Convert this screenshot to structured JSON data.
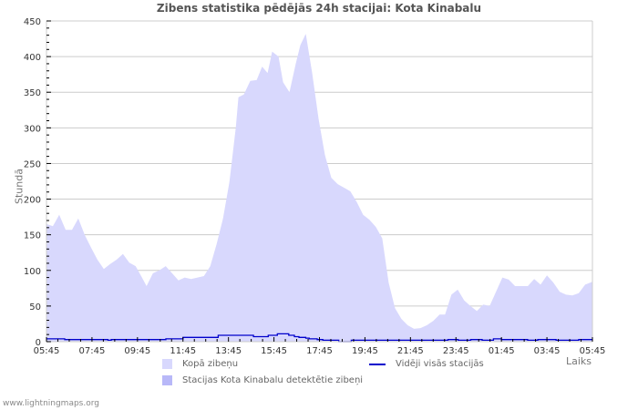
{
  "title": "Zibens statistika pēdējās 24h stacijai: Kota Kinabalu",
  "axes": {
    "ylabel": "Stundā",
    "xlabel": "Laiks"
  },
  "legend": {
    "total": "Kopā zibeņu",
    "station": "Stacijas Kota Kinabalu detektētie zibeņi",
    "average": "Vidēji visās stacijās"
  },
  "footer": "www.lightningmaps.org",
  "colors": {
    "total_fill": "#d8d8fd",
    "station_fill": "#b8b8f8",
    "average_line": "#0000cc",
    "grid": "#cccccc"
  },
  "chart_data": {
    "type": "area",
    "title": "Zibens statistika pēdējās 24h stacijai: Kota Kinabalu",
    "xlabel": "Laiks",
    "ylabel": "Stundā",
    "ylim": [
      0,
      450
    ],
    "yticks": [
      0,
      50,
      100,
      150,
      200,
      250,
      300,
      350,
      400,
      450
    ],
    "xticks": [
      "05:45",
      "07:45",
      "09:45",
      "11:45",
      "13:45",
      "15:45",
      "17:45",
      "19:45",
      "21:45",
      "23:45",
      "01:45",
      "03:45",
      "05:45"
    ],
    "grid": true,
    "legend_position": "bottom",
    "x_hours": [
      0,
      0.28,
      0.56,
      0.84,
      1.12,
      1.4,
      1.68,
      1.96,
      2.24,
      2.52,
      2.8,
      3.08,
      3.36,
      3.64,
      3.92,
      4.2,
      4.4,
      4.68,
      4.96,
      5.24,
      5.52,
      5.8,
      6.08,
      6.36,
      6.64,
      6.92,
      7.2,
      7.48,
      7.76,
      8.04,
      8.32,
      8.44,
      8.68,
      8.96,
      9.24,
      9.48,
      9.72,
      9.92,
      10.2,
      10.4,
      10.68,
      10.96,
      11.16,
      11.4,
      11.68,
      11.96,
      12.24,
      12.52,
      12.8,
      13.08,
      13.36,
      13.64,
      13.92,
      14.2,
      14.48,
      14.76,
      15.04,
      15.32,
      15.6,
      15.88,
      16.16,
      16.44,
      16.72,
      17.0,
      17.28,
      17.52,
      17.8,
      18.08,
      18.36,
      18.64,
      18.92,
      19.2,
      19.48,
      19.76,
      20.04,
      20.32,
      20.6,
      20.88,
      21.16,
      21.44,
      21.72,
      22.0,
      22.28,
      22.56,
      22.84,
      23.12,
      23.4,
      23.68,
      24.0
    ],
    "series": [
      {
        "name": "Kopā zibeņu",
        "values": [
          165,
          162,
          178,
          157,
          157,
          173,
          150,
          132,
          115,
          102,
          109,
          115,
          123,
          111,
          106,
          90,
          78,
          96,
          100,
          106,
          96,
          86,
          90,
          88,
          90,
          92,
          106,
          137,
          173,
          224,
          300,
          343,
          347,
          366,
          367,
          386,
          377,
          407,
          400,
          364,
          350,
          390,
          416,
          432,
          377,
          313,
          262,
          230,
          221,
          216,
          211,
          196,
          178,
          171,
          161,
          145,
          83,
          47,
          32,
          23,
          18,
          19,
          23,
          29,
          38,
          38,
          66,
          73,
          58,
          50,
          43,
          52,
          50,
          70,
          90,
          87,
          78,
          78,
          78,
          88,
          80,
          93,
          83,
          70,
          66,
          65,
          68,
          80,
          84
        ]
      },
      {
        "name": "Stacijas Kota Kinabalu detektētie zibeņi",
        "values": []
      },
      {
        "name": "Vidēji visās stacijās",
        "x_hours": [
          0,
          3.2,
          3.2,
          10.8,
          10.8,
          11.4,
          11.4,
          16.8,
          16.8,
          17.6,
          17.6,
          21.0,
          21.0,
          24.0,
          24.0,
          30.2,
          30.2,
          32.0,
          32.0,
          33.6,
          33.6,
          35.2,
          35.2,
          36.4,
          36.4,
          39.0,
          39.0,
          40.6,
          40.6,
          42.6,
          42.6,
          43.6,
          43.6,
          44.4,
          44.4,
          45.6,
          45.6,
          46.2,
          46.2,
          47.6,
          47.6,
          48.6,
          48.6,
          50.6,
          50.6,
          51.4,
          51.4,
          53.6,
          53.6,
          55.0,
          55.0,
          57.0,
          57.0,
          59.0,
          59.0,
          62.4,
          62.4,
          64.2,
          64.2,
          66.8,
          66.8,
          68.8,
          68.8,
          70.6,
          70.6,
          72.4,
          72.4,
          74.6,
          74.6,
          76.6,
          76.6,
          78.6,
          78.6,
          80.0,
          80.0,
          82.0,
          82.0,
          84.6,
          84.6,
          86.4,
          86.4,
          88.0,
          88.0,
          89.6,
          89.6,
          91.8,
          91.8,
          93.6,
          93.6,
          96.0
        ],
        "values": [
          4,
          4,
          3,
          3,
          2,
          2,
          3,
          3,
          3,
          3,
          3,
          3,
          4,
          4,
          6,
          6,
          9,
          9,
          9,
          9,
          9,
          9,
          9,
          9,
          7,
          7,
          9,
          9,
          11,
          11,
          9,
          9,
          7,
          7,
          6,
          6,
          5,
          5,
          4,
          4,
          3,
          3,
          2,
          2,
          2,
          2,
          0,
          0,
          2,
          2,
          2,
          2,
          2,
          2,
          2,
          2,
          2,
          2,
          2,
          2,
          2,
          2,
          2,
          2,
          3,
          3,
          2,
          2,
          3,
          3,
          2,
          2,
          4,
          4,
          3,
          3,
          3,
          3,
          2,
          2,
          3,
          3,
          3,
          3,
          2,
          2,
          2,
          2,
          3,
          3
        ]
      }
    ]
  }
}
